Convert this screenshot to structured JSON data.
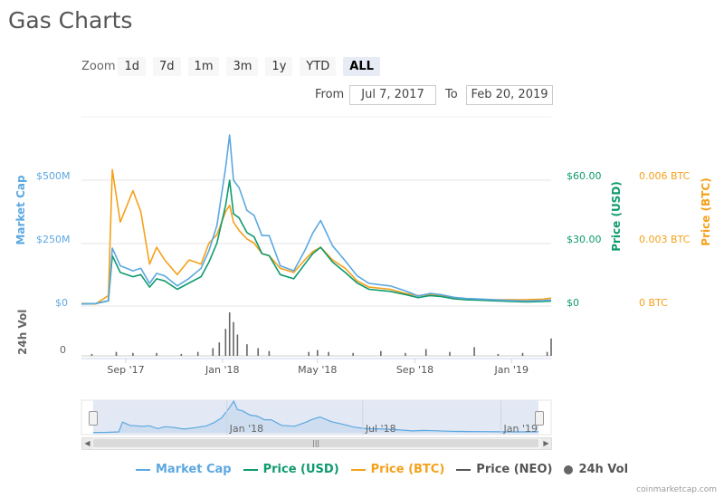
{
  "page": {
    "title": "Gas Charts",
    "credit": "coinmarketcap.com"
  },
  "zoom": {
    "label": "Zoom",
    "buttons": [
      "1d",
      "7d",
      "1m",
      "3m",
      "1y",
      "YTD",
      "ALL"
    ],
    "active": "ALL"
  },
  "range": {
    "from_label": "From",
    "from_value": "Jul 7, 2017",
    "to_label": "To",
    "to_value": "Feb 20, 2019"
  },
  "colors": {
    "market_cap": "#5ca8e0",
    "price_usd": "#0f9a6e",
    "price_btc": "#f5a11a",
    "price_neo": "#555555",
    "volume": "#666666",
    "navigator_fill": "#dfe6f3"
  },
  "axes": {
    "left_title": "Market Cap",
    "usd_title": "Price (USD)",
    "btc_title": "Price (BTC)",
    "vol_title": "24h Vol",
    "left_ticks": [
      "$500M",
      "$250M",
      "$0"
    ],
    "usd_ticks": [
      "$60.00",
      "$30.00",
      "$0"
    ],
    "btc_ticks": [
      "0.006 BTC",
      "0.003 BTC",
      "0 BTC"
    ],
    "vol_ticks": [
      "0"
    ],
    "x_ticks": [
      "Sep '17",
      "Jan '18",
      "May '18",
      "Sep '18",
      "Jan '19"
    ],
    "nav_ticks": [
      "Jan '18",
      "Jul '18",
      "Jan '19"
    ]
  },
  "chart_data": {
    "type": "line",
    "title": "Gas Charts",
    "x_range": [
      "2017-07-07",
      "2019-02-20"
    ],
    "x": [
      "2017-07-07",
      "2017-07-25",
      "2017-08-10",
      "2017-08-15",
      "2017-08-25",
      "2017-09-10",
      "2017-09-20",
      "2017-10-01",
      "2017-10-10",
      "2017-10-20",
      "2017-11-05",
      "2017-11-20",
      "2017-12-05",
      "2017-12-15",
      "2017-12-25",
      "2018-01-05",
      "2018-01-10",
      "2018-01-15",
      "2018-01-22",
      "2018-02-01",
      "2018-02-10",
      "2018-02-20",
      "2018-03-01",
      "2018-03-15",
      "2018-04-01",
      "2018-04-15",
      "2018-04-25",
      "2018-05-05",
      "2018-05-20",
      "2018-06-05",
      "2018-06-20",
      "2018-07-05",
      "2018-08-01",
      "2018-08-20",
      "2018-09-05",
      "2018-09-20",
      "2018-10-05",
      "2018-10-20",
      "2018-11-05",
      "2018-11-20",
      "2018-12-10",
      "2019-01-01",
      "2019-01-20",
      "2019-02-10",
      "2019-02-20"
    ],
    "series": [
      {
        "name": "Market Cap",
        "axis": "Market Cap (USD)",
        "values": [
          8000000,
          10000000,
          20000000,
          230000000,
          160000000,
          140000000,
          150000000,
          90000000,
          130000000,
          120000000,
          80000000,
          110000000,
          150000000,
          220000000,
          320000000,
          550000000,
          680000000,
          500000000,
          470000000,
          380000000,
          360000000,
          280000000,
          280000000,
          160000000,
          140000000,
          220000000,
          290000000,
          340000000,
          240000000,
          180000000,
          120000000,
          90000000,
          80000000,
          60000000,
          40000000,
          50000000,
          45000000,
          35000000,
          30000000,
          28000000,
          25000000,
          22000000,
          20000000,
          22000000,
          24000000
        ]
      },
      {
        "name": "Price (USD)",
        "axis": "Price (USD)",
        "values": [
          1.0,
          1.2,
          2.5,
          24,
          16,
          14,
          15,
          9,
          13,
          12,
          8,
          11,
          14,
          21,
          30,
          48,
          60,
          44,
          42,
          35,
          33,
          25,
          24,
          15,
          13,
          20,
          25,
          28,
          21,
          16,
          11,
          8,
          7,
          5.5,
          4,
          5,
          4.5,
          3.5,
          3,
          2.8,
          2.5,
          2.2,
          2.0,
          2.2,
          2.4
        ]
      },
      {
        "name": "Price (BTC)",
        "axis": "Price (BTC)",
        "values": [
          0.00012,
          0.0001,
          0.0005,
          0.0065,
          0.004,
          0.0055,
          0.0045,
          0.002,
          0.0028,
          0.0022,
          0.0015,
          0.0022,
          0.002,
          0.003,
          0.0034,
          0.0045,
          0.0048,
          0.004,
          0.0036,
          0.0032,
          0.003,
          0.0025,
          0.0024,
          0.0018,
          0.0016,
          0.0022,
          0.0026,
          0.0028,
          0.0022,
          0.0018,
          0.0012,
          0.0009,
          0.0008,
          0.0006,
          0.0005,
          0.00055,
          0.0005,
          0.0004,
          0.00035,
          0.00033,
          0.0003,
          0.0003,
          0.0003,
          0.00033,
          0.00038
        ]
      }
    ],
    "volume": {
      "name": "24h Vol",
      "x": [
        "2017-07-20",
        "2017-08-20",
        "2017-09-10",
        "2017-10-10",
        "2017-11-10",
        "2017-12-01",
        "2017-12-20",
        "2017-12-28",
        "2018-01-05",
        "2018-01-10",
        "2018-01-15",
        "2018-01-20",
        "2018-02-01",
        "2018-02-15",
        "2018-03-01",
        "2018-04-20",
        "2018-05-01",
        "2018-05-15",
        "2018-06-15",
        "2018-07-20",
        "2018-08-20",
        "2018-09-15",
        "2018-10-15",
        "2018-11-15",
        "2018-12-15",
        "2019-01-15",
        "2019-02-15",
        "2019-02-20"
      ],
      "values": [
        2,
        4,
        3,
        3,
        2,
        4,
        8,
        14,
        28,
        45,
        35,
        22,
        12,
        8,
        5,
        4,
        6,
        4,
        3,
        5,
        3,
        7,
        4,
        9,
        2,
        3,
        4,
        18
      ]
    },
    "legend": [
      "Market Cap",
      "Price (USD)",
      "Price (BTC)",
      "Price (NEO)",
      "24h Vol"
    ],
    "legend_position": "bottom",
    "grid": true
  }
}
